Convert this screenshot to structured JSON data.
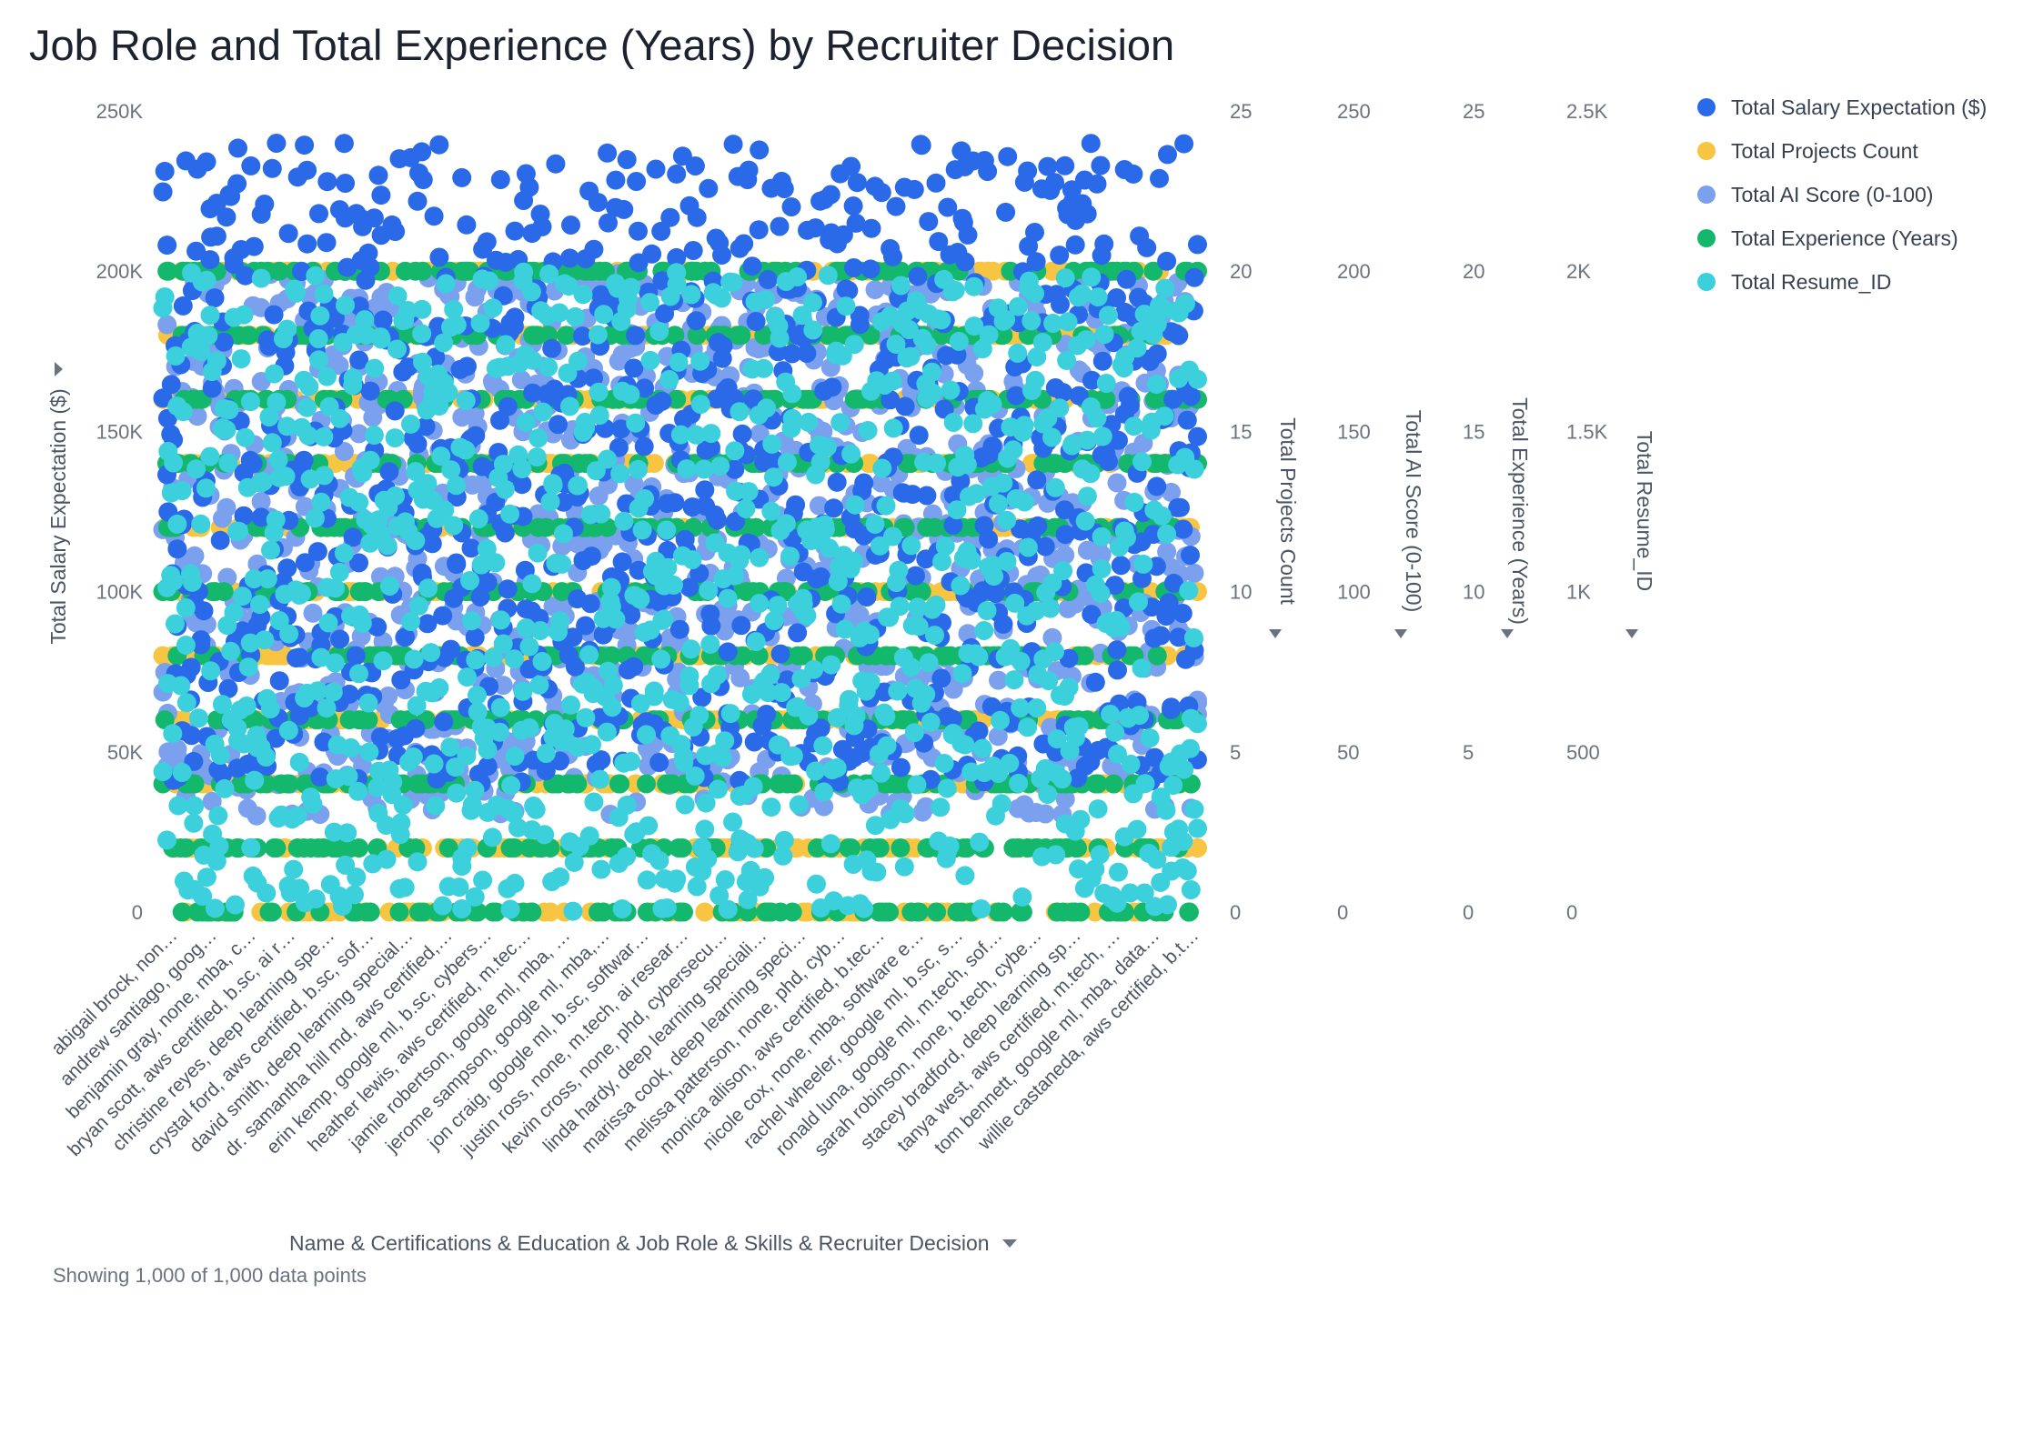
{
  "title": "Job Role and Total Experience (Years) by Recruiter Decision",
  "footer_text": "Showing 1,000 of 1,000 data points",
  "x_axis_title": "Name & Certifications & Education & Job Role & Skills & Recruiter Decision",
  "x_axis_dropdown_icon": "chevron-down-icon",
  "axis_dropdown_icon": "caret-down-icon",
  "legend": [
    {
      "label": "Total Salary Expectation ($)",
      "color": "#2a6ae9"
    },
    {
      "label": "Total Projects Count",
      "color": "#f7c541"
    },
    {
      "label": "Total AI Score (0-100)",
      "color": "#7aa0ee"
    },
    {
      "label": "Total Experience (Years)",
      "color": "#14b86c"
    },
    {
      "label": "Total Resume_ID",
      "color": "#3cd0dc"
    }
  ],
  "chart_data": {
    "type": "scatter",
    "title": "Job Role and Total Experience (Years) by Recruiter Decision",
    "xlabel": "Name & Certifications & Education & Job Role & Skills & Recruiter Decision",
    "point_count": 1000,
    "grid": false,
    "legend_position": "top-right",
    "x_tick_labels": [
      "abigail brock, non…",
      "andrew santiago, goog…",
      "benjamin gray, none, mba, c…",
      "bryan scott, aws certified, b.sc, ai r…",
      "christine reyes, deep learning spe…",
      "crystal ford, aws certified, b.sc, sof…",
      "david smith, deep learning special…",
      "dr. samantha hill md, aws certified,…",
      "erin kemp, google ml, b.sc, cybers…",
      "heather lewis, aws certified, m.tec…",
      "jamie robertson, google ml, mba, …",
      "jerome sampson, google ml, mba,…",
      "jon craig, google ml, b.sc, softwar…",
      "justin ross, none, m.tech, ai resear…",
      "kevin cross, none, phd, cybersecu…",
      "linda hardy, deep learning speciali…",
      "marissa cook, deep learning speci…",
      "melissa patterson, none, phd, cyb…",
      "monica allison, aws certified, b.tec…",
      "nicole cox, none, mba, software e…",
      "rachel wheeler, google ml, b.sc, s…",
      "ronald luna, google ml, m.tech, sof…",
      "sarah robinson, none, b.tech, cybe…",
      "stacey bradford, deep learning sp…",
      "tanya west, aws certified, m.tech, …",
      "tom bennett, google ml, mba, data…",
      "willie castaneda, aws certified, b.t…"
    ],
    "axes": [
      {
        "title": "Total Salary Expectation ($)",
        "side": "left",
        "range": [
          0,
          250000
        ],
        "ticks": [
          "0",
          "50K",
          "100K",
          "150K",
          "200K",
          "250K"
        ]
      },
      {
        "title": "Total Projects Count",
        "side": "right",
        "range": [
          0,
          25
        ],
        "ticks": [
          "0",
          "5",
          "10",
          "15",
          "20",
          "25"
        ]
      },
      {
        "title": "Total AI Score (0-100)",
        "side": "right",
        "range": [
          0,
          250
        ],
        "ticks": [
          "0",
          "50",
          "100",
          "150",
          "200",
          "250"
        ]
      },
      {
        "title": "Total Experience (Years)",
        "side": "right",
        "range": [
          0,
          25
        ],
        "ticks": [
          "0",
          "5",
          "10",
          "15",
          "20",
          "25"
        ]
      },
      {
        "title": "Total Resume_ID",
        "side": "right",
        "range": [
          0,
          2500
        ],
        "ticks": [
          "0",
          "500",
          "1K",
          "1.5K",
          "2K",
          "2.5K"
        ]
      }
    ],
    "series": [
      {
        "name": "Total Salary Expectation ($)",
        "axis": 0,
        "color": "#2a6ae9",
        "value_range": [
          40000,
          240000
        ],
        "distribution": "uniform"
      },
      {
        "name": "Total Projects Count",
        "axis": 1,
        "color": "#f7c541",
        "levels": [
          0,
          2,
          4,
          6,
          8,
          10,
          12,
          14,
          16,
          18,
          20
        ]
      },
      {
        "name": "Total AI Score (0-100)",
        "axis": 2,
        "color": "#7aa0ee",
        "value_range": [
          30,
          200
        ],
        "distribution": "uniform"
      },
      {
        "name": "Total Experience (Years)",
        "axis": 3,
        "color": "#14b86c",
        "levels": [
          0,
          2,
          4,
          6,
          8,
          10,
          12,
          14,
          16,
          18,
          20
        ]
      },
      {
        "name": "Total Resume_ID",
        "axis": 4,
        "color": "#3cd0dc",
        "value_range": [
          1,
          2000
        ],
        "distribution": "uniform"
      }
    ]
  }
}
